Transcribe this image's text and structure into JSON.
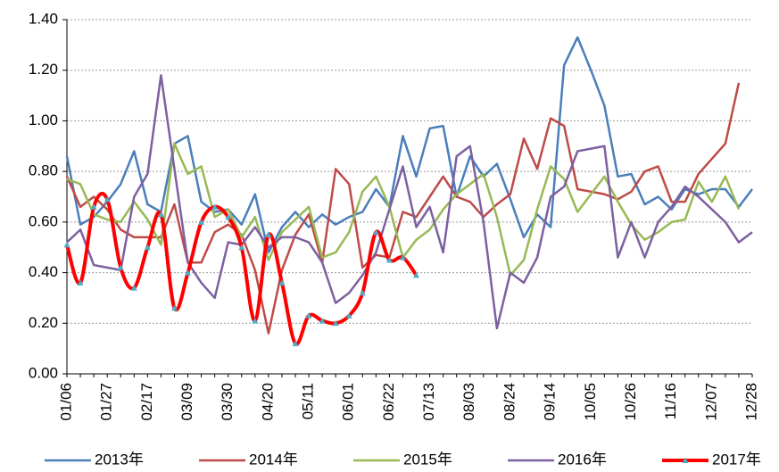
{
  "chart_data": {
    "type": "line",
    "categories": [
      "01/06",
      null,
      null,
      "01/27",
      null,
      null,
      "02/17",
      null,
      null,
      "03/09",
      null,
      null,
      "03/30",
      null,
      null,
      "04/20",
      null,
      null,
      "05/11",
      null,
      null,
      "06/01",
      null,
      null,
      "06/22",
      null,
      null,
      "07/13",
      null,
      null,
      "08/03",
      null,
      null,
      "08/24",
      null,
      null,
      "09/14",
      null,
      null,
      "10/05",
      null,
      null,
      "10/26",
      null,
      null,
      "11/16",
      null,
      null,
      "12/07",
      null,
      null,
      "12/28"
    ],
    "series": [
      {
        "name": "2013年",
        "color": "#4a7ebb",
        "smooth": false,
        "values": [
          0.86,
          0.59,
          0.62,
          0.68,
          0.75,
          0.88,
          0.67,
          0.64,
          0.91,
          0.94,
          0.68,
          0.64,
          0.65,
          0.59,
          0.71,
          0.48,
          0.58,
          0.64,
          0.58,
          0.63,
          0.59,
          0.62,
          0.64,
          0.73,
          0.66,
          0.94,
          0.78,
          0.97,
          0.98,
          0.7,
          0.86,
          0.78,
          0.83,
          0.69,
          0.54,
          0.63,
          0.58,
          1.22,
          1.33,
          1.2,
          1.06,
          0.78,
          0.79,
          0.67,
          0.7,
          0.65,
          0.73,
          0.71,
          0.73,
          0.73,
          0.66,
          0.73
        ]
      },
      {
        "name": "2014年",
        "color": "#be4b48",
        "smooth": false,
        "values": [
          0.78,
          0.66,
          0.7,
          0.65,
          0.57,
          0.54,
          0.54,
          0.54,
          0.67,
          0.44,
          0.44,
          0.56,
          0.59,
          0.55,
          0.41,
          0.16,
          0.41,
          0.55,
          0.63,
          0.44,
          0.81,
          0.75,
          0.42,
          0.47,
          0.46,
          0.64,
          0.62,
          0.7,
          0.78,
          0.7,
          0.68,
          0.62,
          0.67,
          0.71,
          0.93,
          0.81,
          1.01,
          0.98,
          0.73,
          0.72,
          0.71,
          0.69,
          0.72,
          0.8,
          0.82,
          0.68,
          0.68,
          0.79,
          0.85,
          0.91,
          1.15,
          null
        ]
      },
      {
        "name": "2015年",
        "color": "#98b954",
        "smooth": false,
        "values": [
          0.77,
          0.75,
          0.63,
          0.61,
          0.6,
          0.68,
          0.61,
          0.51,
          0.91,
          0.79,
          0.82,
          0.62,
          0.65,
          0.54,
          0.62,
          0.45,
          0.56,
          0.61,
          0.66,
          0.46,
          0.48,
          0.56,
          0.72,
          0.78,
          0.66,
          0.46,
          0.53,
          0.57,
          0.65,
          0.71,
          0.75,
          0.79,
          0.62,
          0.39,
          0.45,
          0.65,
          0.82,
          0.77,
          0.64,
          0.71,
          0.78,
          0.68,
          0.59,
          0.53,
          0.56,
          0.6,
          0.61,
          0.76,
          0.68,
          0.78,
          0.65,
          null
        ]
      },
      {
        "name": "2016年",
        "color": "#7d60a0",
        "smooth": false,
        "values": [
          0.52,
          0.57,
          0.43,
          0.42,
          0.41,
          0.7,
          0.79,
          1.18,
          0.81,
          0.44,
          0.36,
          0.3,
          0.52,
          0.51,
          0.58,
          0.5,
          0.54,
          0.54,
          0.52,
          0.44,
          0.28,
          0.32,
          0.39,
          0.48,
          0.65,
          0.82,
          0.58,
          0.66,
          0.48,
          0.86,
          0.9,
          0.6,
          0.18,
          0.4,
          0.36,
          0.46,
          0.7,
          0.74,
          0.88,
          0.89,
          0.9,
          0.46,
          0.6,
          0.46,
          0.6,
          0.66,
          0.74,
          0.7,
          0.65,
          0.6,
          0.52,
          0.56
        ]
      },
      {
        "name": "2017年",
        "color": "#ff0000",
        "smooth": true,
        "marker_color": "#4bacc6",
        "values": [
          0.51,
          0.36,
          0.66,
          0.69,
          0.42,
          0.34,
          0.5,
          0.63,
          0.26,
          0.4,
          0.6,
          0.66,
          0.62,
          0.5,
          0.21,
          0.55,
          0.36,
          0.12,
          0.23,
          0.21,
          0.2,
          0.23,
          0.32,
          0.56,
          0.45,
          0.46,
          0.39,
          null,
          null,
          null,
          null,
          null,
          null,
          null,
          null,
          null,
          null,
          null,
          null,
          null,
          null,
          null,
          null,
          null,
          null,
          null,
          null,
          null,
          null,
          null,
          null,
          null
        ]
      }
    ],
    "ylim": [
      0,
      1.4
    ],
    "yticks": [
      {
        "value": 0,
        "label": "0.00"
      },
      {
        "value": 0.2,
        "label": "0.20"
      },
      {
        "value": 0.4,
        "label": "0.40"
      },
      {
        "value": 0.6,
        "label": "0.60"
      },
      {
        "value": 0.8,
        "label": "0.80"
      },
      {
        "value": 1,
        "label": "1.00"
      },
      {
        "value": 1.2,
        "label": "1.20"
      },
      {
        "value": 1.4,
        "label": "1.40"
      }
    ],
    "grid": true,
    "legend": "bottom"
  }
}
